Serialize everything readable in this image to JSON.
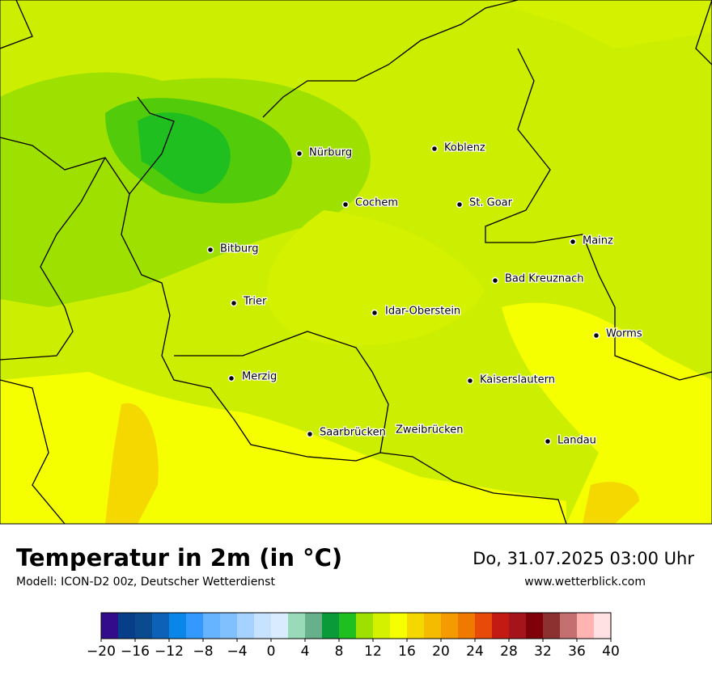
{
  "map": {
    "cities": [
      "Nürburg",
      "Koblenz",
      "Cochem",
      "St. Goar",
      "Bitburg",
      "Mainz",
      "Bad Kreuznach",
      "Trier",
      "Idar-Oberstein",
      "Worms",
      "Merzig",
      "Kaiserslautern",
      "Saarbrücken",
      "Zweibrücken",
      "Landau"
    ]
  },
  "legend": {
    "title": "Temperatur in 2m (in °C)",
    "model": "Modell: ICON-D2 00z, Deutscher Wetterdienst",
    "datetime": "Do, 31.07.2025 03:00 Uhr",
    "website": "www.wetterblick.com",
    "colorbar": {
      "range": [
        -20,
        40
      ],
      "colors": [
        "#330c8c",
        "#063e8a",
        "#0a4a8e",
        "#0d62b8",
        "#0a86e8",
        "#3399ff",
        "#66b3ff",
        "#80c0ff",
        "#a6d2ff",
        "#c6e2ff",
        "#d9ecff",
        "#99dbb8",
        "#66b08a",
        "#0a9a3a",
        "#1fbf1f",
        "#9ee000",
        "#d4f200",
        "#f5ff00",
        "#f5d800",
        "#f5bb00",
        "#f59a00",
        "#f07a00",
        "#e84a0a",
        "#c41a14",
        "#a5141a",
        "#80000a",
        "#8c3030",
        "#c47070",
        "#ffb3b3",
        "#ffe0e3"
      ],
      "ticks": [
        {
          "value": -20,
          "label": "−20"
        },
        {
          "value": -16,
          "label": "−16"
        },
        {
          "value": -12,
          "label": "−12"
        },
        {
          "value": -8,
          "label": "−8"
        },
        {
          "value": -4,
          "label": "−4"
        },
        0,
        4,
        8,
        12,
        16,
        20,
        24,
        28,
        32,
        36,
        40
      ]
    }
  }
}
